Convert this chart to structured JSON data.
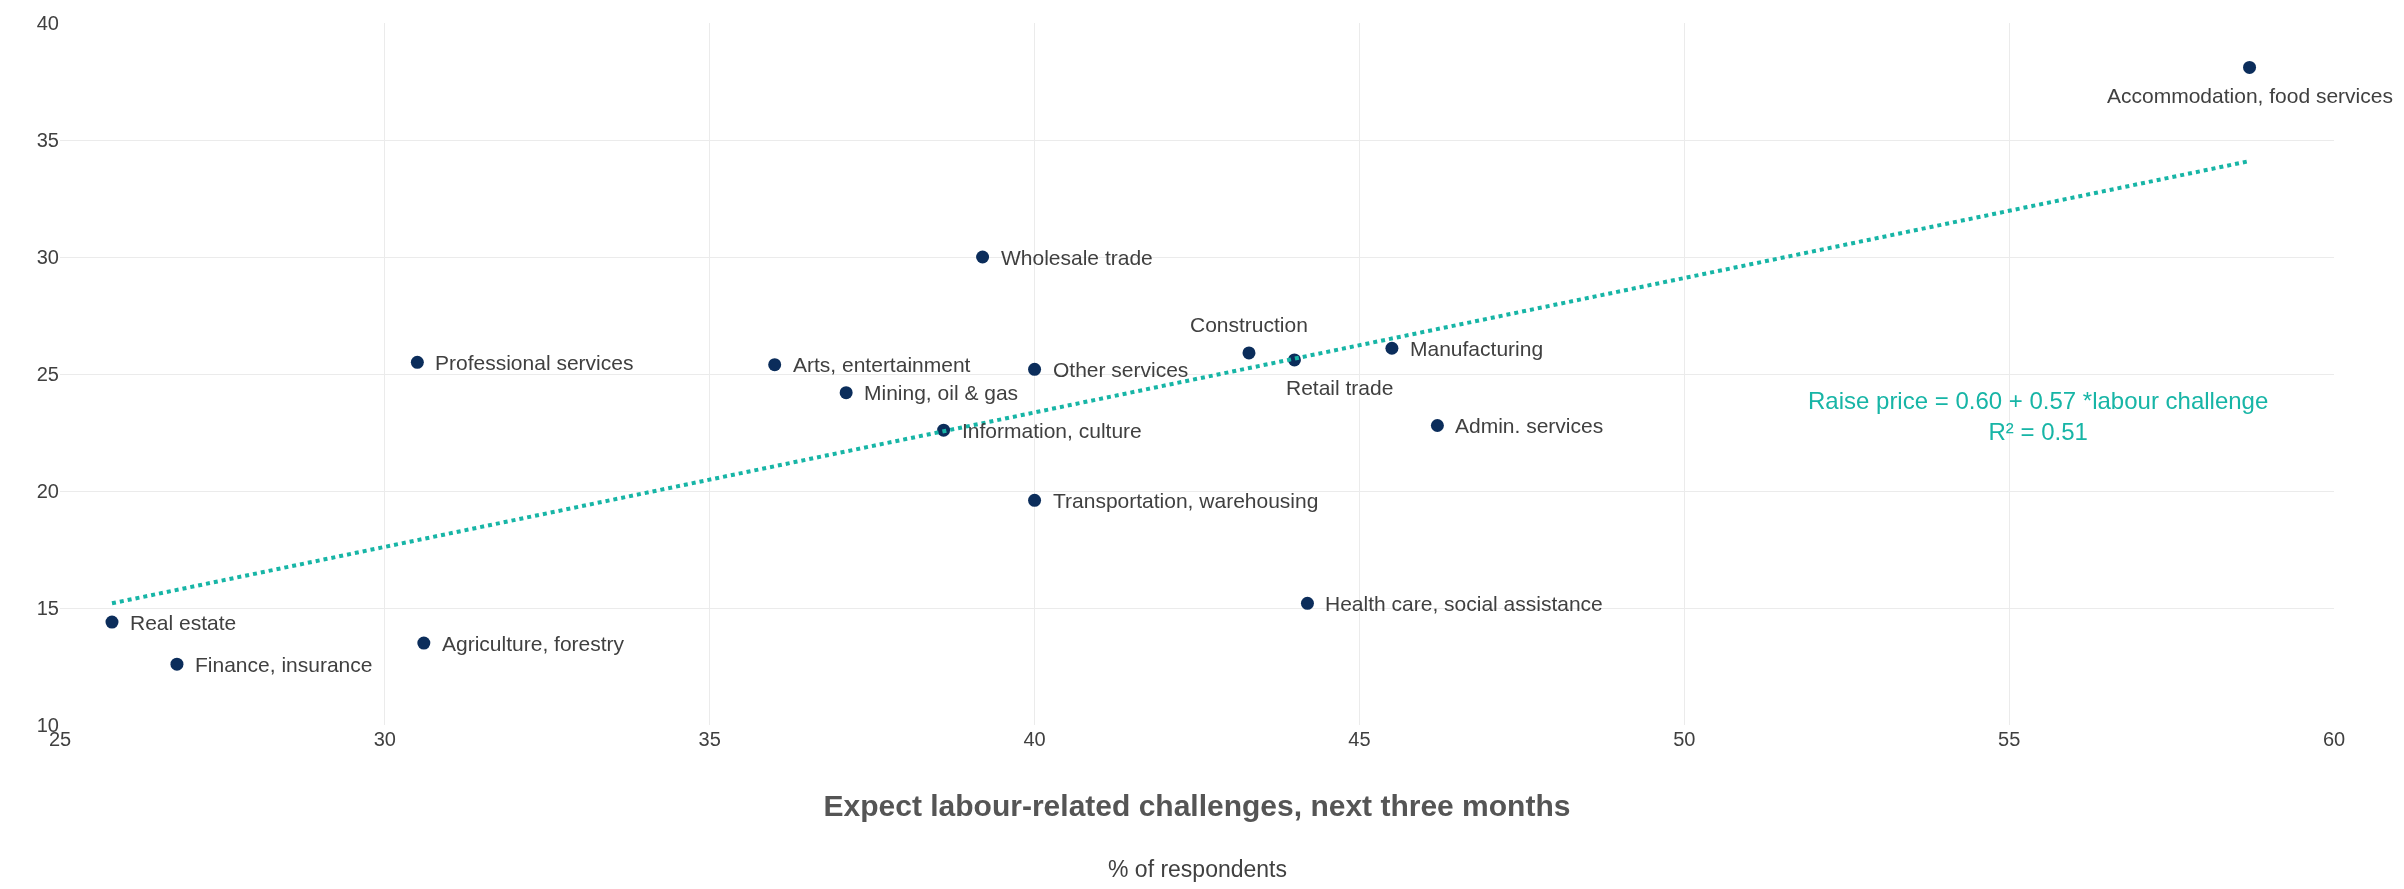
{
  "chart_data": {
    "type": "scatter",
    "xlabel": "Expect labour-related challenges, next three months",
    "xlim": [
      25,
      60
    ],
    "ylim": [
      10,
      40
    ],
    "xticks": [
      25,
      30,
      35,
      40,
      45,
      50,
      55,
      60
    ],
    "yticks": [
      10,
      15,
      20,
      25,
      30,
      35,
      40
    ],
    "grid": true,
    "marker": "circle",
    "series": [
      {
        "color": "#0b2d5b",
        "x": [
          58.7,
          39.2,
          30.5,
          36.0,
          40.0,
          37.1,
          38.6,
          43.3,
          44.0,
          45.5,
          46.2,
          40.0,
          44.2,
          25.8,
          26.8,
          30.6
        ],
        "values": [
          38.1,
          30.0,
          25.5,
          25.4,
          25.2,
          24.2,
          22.6,
          25.9,
          25.6,
          26.1,
          22.8,
          19.6,
          15.2,
          14.4,
          12.6,
          13.5
        ]
      },
      {
        "type": "line",
        "color": "#17b5a6",
        "line_style": "dotted",
        "marker": "none",
        "x": [
          25.8,
          58.7
        ],
        "values": [
          15.2,
          34.1
        ]
      }
    ],
    "annotations": [
      {
        "text": "Accommodation, food services",
        "x": 58.7,
        "y": 38.1
      },
      {
        "text": "Wholesale trade",
        "x": 39.2,
        "y": 30.0
      },
      {
        "text": "Professional services",
        "x": 30.5,
        "y": 25.5
      },
      {
        "text": "Arts, entertainment",
        "x": 36.0,
        "y": 25.4
      },
      {
        "text": "Other services",
        "x": 40.0,
        "y": 25.2
      },
      {
        "text": "Mining, oil & gas",
        "x": 37.1,
        "y": 24.2
      },
      {
        "text": "Information, culture",
        "x": 38.6,
        "y": 22.6
      },
      {
        "text": "Construction",
        "x": 43.3,
        "y": 25.9
      },
      {
        "text": "Retail trade",
        "x": 44.0,
        "y": 25.6
      },
      {
        "text": "Manufacturing",
        "x": 45.5,
        "y": 26.1
      },
      {
        "text": "Admin. services",
        "x": 46.2,
        "y": 22.8
      },
      {
        "text": "Transportation, warehousing",
        "x": 40.0,
        "y": 19.6
      },
      {
        "text": "Health care, social assistance",
        "x": 44.2,
        "y": 15.2
      },
      {
        "text": "Real estate",
        "x": 25.8,
        "y": 14.4
      },
      {
        "text": "Finance, insurance",
        "x": 26.8,
        "y": 12.6
      },
      {
        "text": "Agriculture, forestry",
        "x": 30.6,
        "y": 13.5
      },
      "Raise price = 0.60 + 0.57 *labour challenge\nR² = 0.51",
      "% of respondents"
    ]
  }
}
